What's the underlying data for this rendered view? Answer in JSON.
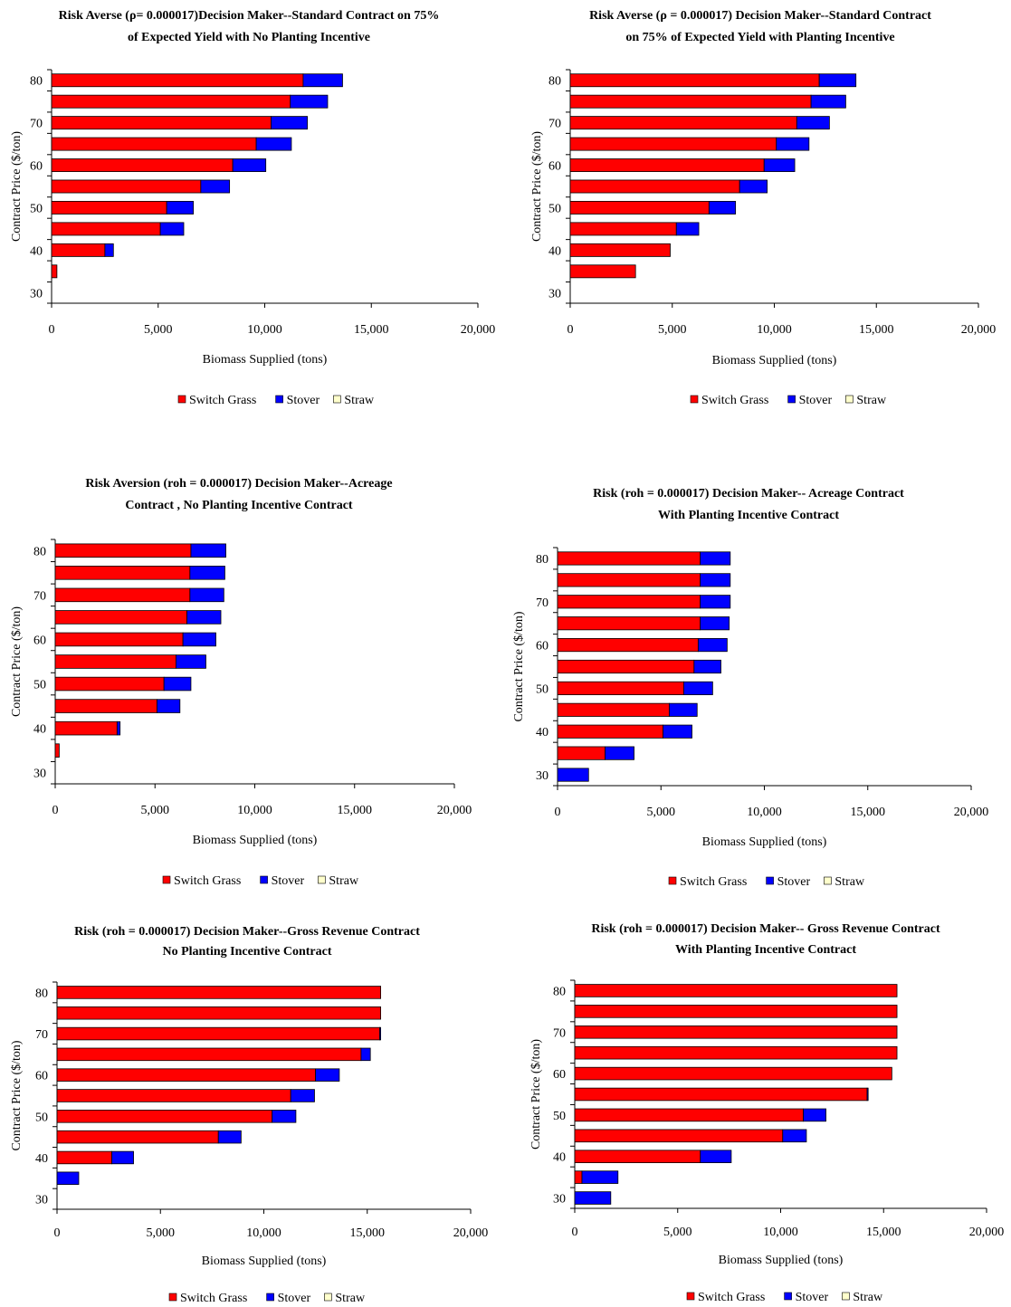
{
  "legend_items": [
    "Switch Grass",
    "Stover",
    "Straw"
  ],
  "colors": {
    "switch_grass": "#ff0000",
    "stover": "#0000ff",
    "straw": "#ffffcc",
    "outline": "#000000"
  },
  "chart_data": [
    {
      "type": "bar",
      "orientation": "horizontal",
      "stacked": true,
      "title_lines": [
        "Risk Averse (ρ= 0.000017)Decision Maker--Standard Contract on 75%",
        "of Expected Yield with No Planting Incentive"
      ],
      "xlabel": "Biomass Supplied (tons)",
      "ylabel": "Contract Price ($/ton)",
      "xlim": [
        0,
        20000
      ],
      "xticks": [
        "0",
        "5,000",
        "10,000",
        "15,000",
        "20,000"
      ],
      "yticks": [
        "80",
        "70",
        "60",
        "50",
        "40",
        "30"
      ],
      "categories": [
        80,
        75,
        70,
        65,
        60,
        55,
        50,
        45,
        40,
        35
      ],
      "series": [
        {
          "name": "Switch Grass",
          "values": [
            11800,
            11200,
            10300,
            9600,
            8500,
            7000,
            5400,
            5100,
            2500,
            250
          ]
        },
        {
          "name": "Stover",
          "values": [
            1850,
            1750,
            1700,
            1650,
            1550,
            1350,
            1250,
            1100,
            400,
            0
          ]
        },
        {
          "name": "Straw",
          "values": [
            0,
            0,
            0,
            0,
            0,
            0,
            0,
            0,
            0,
            0
          ]
        }
      ],
      "legend": "bottom"
    },
    {
      "type": "bar",
      "orientation": "horizontal",
      "stacked": true,
      "title_lines": [
        "Risk Averse (ρ = 0.000017) Decision Maker--Standard Contract",
        "on 75% of Expected Yield with Planting Incentive"
      ],
      "xlabel": "Biomass Supplied (tons)",
      "ylabel": "Contract Price ($/ton)",
      "xlim": [
        0,
        20000
      ],
      "xticks": [
        "0",
        "5,000",
        "10,000",
        "15,000",
        "20,000"
      ],
      "yticks": [
        "80",
        "70",
        "60",
        "50",
        "40",
        "30"
      ],
      "categories": [
        80,
        75,
        70,
        65,
        60,
        55,
        50,
        45,
        40,
        35
      ],
      "series": [
        {
          "name": "Switch Grass",
          "values": [
            12200,
            11800,
            11100,
            10100,
            9500,
            8300,
            6800,
            5200,
            4900,
            3200
          ]
        },
        {
          "name": "Stover",
          "values": [
            1800,
            1700,
            1600,
            1600,
            1500,
            1350,
            1300,
            1100,
            0,
            0
          ]
        },
        {
          "name": "Straw",
          "values": [
            0,
            0,
            0,
            0,
            0,
            0,
            0,
            0,
            0,
            0
          ]
        }
      ],
      "legend": "bottom"
    },
    {
      "type": "bar",
      "orientation": "horizontal",
      "stacked": true,
      "title_lines": [
        "Risk Aversion (roh = 0.000017) Decision Maker--Acreage",
        "Contract , No Planting Incentive Contract"
      ],
      "xlabel": "Biomass Supplied (tons)",
      "ylabel": "Contract Price ($/ton)",
      "xlim": [
        0,
        20000
      ],
      "xticks": [
        "0",
        "5,000",
        "10,000",
        "15,000",
        "20,000"
      ],
      "yticks": [
        "80",
        "70",
        "60",
        "50",
        "40",
        "30"
      ],
      "categories": [
        80,
        75,
        70,
        65,
        60,
        55,
        50,
        45,
        40,
        35
      ],
      "series": [
        {
          "name": "Switch Grass",
          "values": [
            6800,
            6750,
            6750,
            6600,
            6400,
            6050,
            5450,
            5100,
            3100,
            200
          ]
        },
        {
          "name": "Stover",
          "values": [
            1750,
            1750,
            1700,
            1700,
            1650,
            1500,
            1350,
            1150,
            150,
            0
          ]
        },
        {
          "name": "Straw",
          "values": [
            0,
            0,
            0,
            0,
            0,
            0,
            0,
            0,
            0,
            0
          ]
        }
      ],
      "legend": "bottom"
    },
    {
      "type": "bar",
      "orientation": "horizontal",
      "stacked": true,
      "title_lines": [
        "Risk (roh = 0.000017)  Decision Maker-- Acreage Contract",
        "With Planting Incentive Contract"
      ],
      "xlabel": "Biomass Supplied (tons)",
      "ylabel": "Contract Price ($/ton)",
      "xlim": [
        0,
        20000
      ],
      "xticks": [
        "0",
        "5,000",
        "10,000",
        "15,000",
        "20,000"
      ],
      "yticks": [
        "80",
        "70",
        "60",
        "50",
        "40",
        "30"
      ],
      "categories": [
        80,
        75,
        70,
        65,
        60,
        55,
        50,
        45,
        40,
        35,
        30
      ],
      "series": [
        {
          "name": "Switch Grass",
          "values": [
            6900,
            6900,
            6900,
            6900,
            6800,
            6600,
            6100,
            5400,
            5100,
            2300,
            0
          ]
        },
        {
          "name": "Stover",
          "values": [
            1450,
            1450,
            1450,
            1400,
            1400,
            1300,
            1400,
            1350,
            1400,
            1400,
            1500
          ]
        },
        {
          "name": "Straw",
          "values": [
            0,
            0,
            0,
            0,
            0,
            0,
            0,
            0,
            0,
            0,
            0
          ]
        }
      ],
      "legend": "bottom"
    },
    {
      "type": "bar",
      "orientation": "horizontal",
      "stacked": true,
      "title_lines": [
        "Risk (roh = 0.000017) Decision Maker--Gross Revenue Contract",
        "No Planting Incentive Contract"
      ],
      "xlabel": "Biomass Supplied (tons)",
      "ylabel": "Contract Price ($/ton)",
      "xlim": [
        0,
        20000
      ],
      "xticks": [
        "0",
        "5,000",
        "10,000",
        "15,000",
        "20,000"
      ],
      "yticks": [
        "80",
        "70",
        "60",
        "50",
        "40",
        "30"
      ],
      "categories": [
        80,
        75,
        70,
        65,
        60,
        55,
        50,
        45,
        40,
        35
      ],
      "series": [
        {
          "name": "Switch Grass",
          "values": [
            15650,
            15650,
            15600,
            14700,
            12500,
            11300,
            10400,
            7800,
            2650,
            0
          ]
        },
        {
          "name": "Stover",
          "values": [
            0,
            0,
            50,
            450,
            1150,
            1150,
            1150,
            1100,
            1050,
            1050
          ]
        },
        {
          "name": "Straw",
          "values": [
            0,
            0,
            0,
            0,
            0,
            0,
            0,
            0,
            0,
            0
          ]
        }
      ],
      "legend": "bottom"
    },
    {
      "type": "bar",
      "orientation": "horizontal",
      "stacked": true,
      "title_lines": [
        "Risk (roh = 0.000017) Decision Maker-- Gross Revenue Contract",
        "With Planting Incentive Contract"
      ],
      "xlabel": "Biomass Supplied (tons)",
      "ylabel": "Contract Price ($/ton)",
      "xlim": [
        0,
        20000
      ],
      "xticks": [
        "0",
        "5,000",
        "10,000",
        "15,000",
        "20,000"
      ],
      "yticks": [
        "80",
        "70",
        "60",
        "50",
        "40",
        "30"
      ],
      "categories": [
        80,
        75,
        70,
        65,
        60,
        55,
        50,
        45,
        40,
        35,
        30
      ],
      "series": [
        {
          "name": "Switch Grass",
          "values": [
            15650,
            15650,
            15650,
            15650,
            15400,
            14200,
            11100,
            10100,
            6100,
            350,
            0
          ]
        },
        {
          "name": "Stover",
          "values": [
            0,
            0,
            0,
            0,
            0,
            50,
            1100,
            1150,
            1500,
            1750,
            1750
          ]
        },
        {
          "name": "Straw",
          "values": [
            0,
            0,
            0,
            0,
            0,
            0,
            0,
            0,
            0,
            0,
            0
          ]
        }
      ],
      "legend": "bottom"
    }
  ]
}
